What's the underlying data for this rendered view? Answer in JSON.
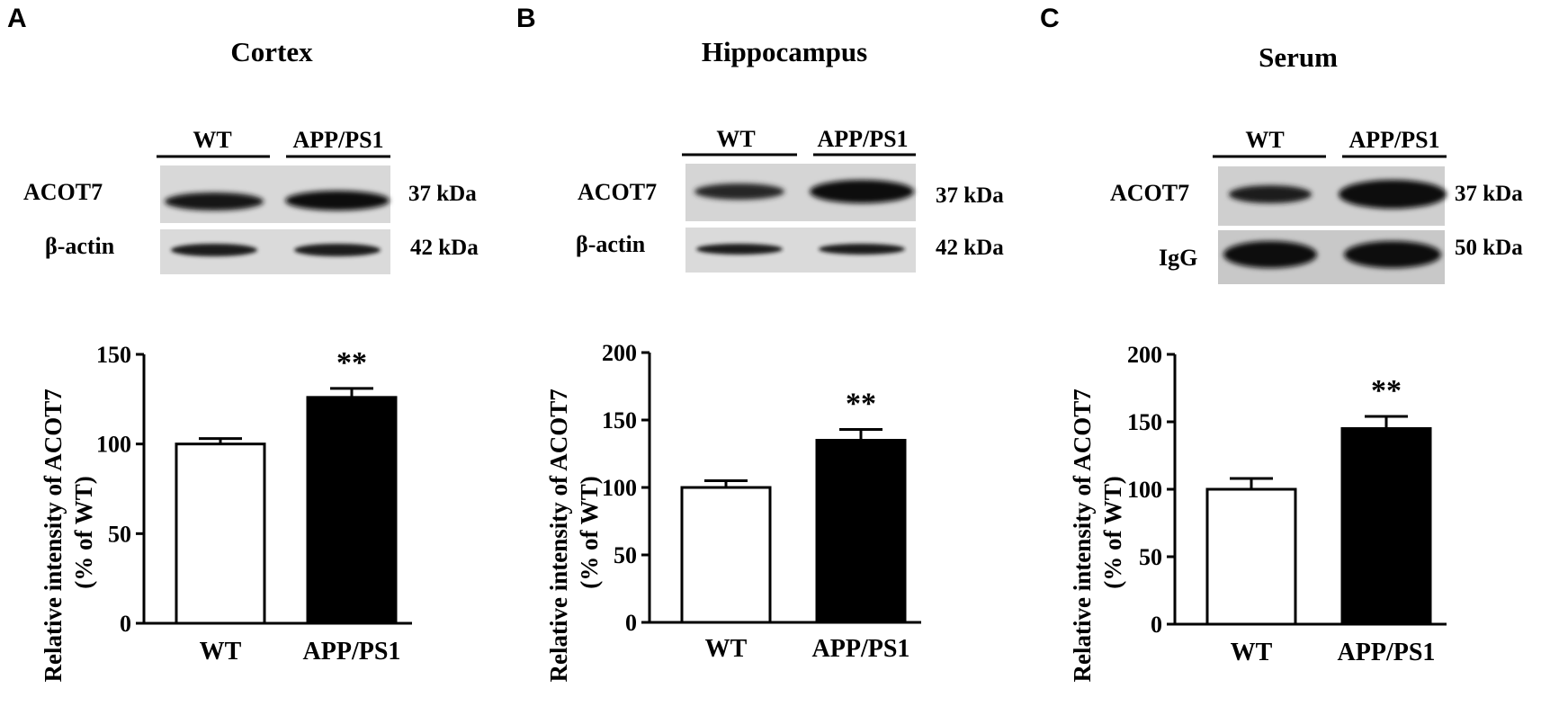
{
  "panels": [
    {
      "letter": "A",
      "tissue": "Cortex",
      "lanes": [
        "WT",
        "APP/PS1"
      ],
      "blots": [
        {
          "label": "ACOT7",
          "kda": "37 kDa"
        },
        {
          "label": "β-actin",
          "kda": "42 kDa"
        }
      ]
    },
    {
      "letter": "B",
      "tissue": "Hippocampus",
      "lanes": [
        "WT",
        "APP/PS1"
      ],
      "blots": [
        {
          "label": "ACOT7",
          "kda": "37 kDa"
        },
        {
          "label": "β-actin",
          "kda": "42 kDa"
        }
      ]
    },
    {
      "letter": "C",
      "tissue": "Serum",
      "lanes": [
        "WT",
        "APP/PS1"
      ],
      "blots": [
        {
          "label": "ACOT7",
          "kda": "37 kDa"
        },
        {
          "label": "IgG",
          "kda": "50 kDa"
        }
      ]
    }
  ],
  "colors": {
    "wt_fill": "#ffffff",
    "app_fill": "#000000",
    "axis": "#000000"
  },
  "chart_data": [
    {
      "type": "bar",
      "categories": [
        "WT",
        "APP/PS1"
      ],
      "values": [
        100,
        126
      ],
      "errors": [
        3,
        5
      ],
      "significance": [
        "",
        "**"
      ],
      "ylabel": "Relative intensity of ACOT7 (% of WT)",
      "ylim": [
        0,
        150
      ],
      "yticks": [
        0,
        50,
        100,
        150
      ],
      "grid": false
    },
    {
      "type": "bar",
      "categories": [
        "WT",
        "APP/PS1"
      ],
      "values": [
        100,
        135
      ],
      "errors": [
        5,
        8
      ],
      "significance": [
        "",
        "**"
      ],
      "ylabel": "Relative intensity of ACOT7 (% of WT)",
      "ylim": [
        0,
        200
      ],
      "yticks": [
        0,
        50,
        100,
        150,
        200
      ],
      "grid": false
    },
    {
      "type": "bar",
      "categories": [
        "WT",
        "APP/PS1"
      ],
      "values": [
        100,
        145
      ],
      "errors": [
        8,
        9
      ],
      "significance": [
        "",
        "**"
      ],
      "ylabel": "Relative intensity of ACOT7 (% of WT)",
      "ylim": [
        0,
        200
      ],
      "yticks": [
        0,
        50,
        100,
        150,
        200
      ],
      "grid": false
    }
  ]
}
